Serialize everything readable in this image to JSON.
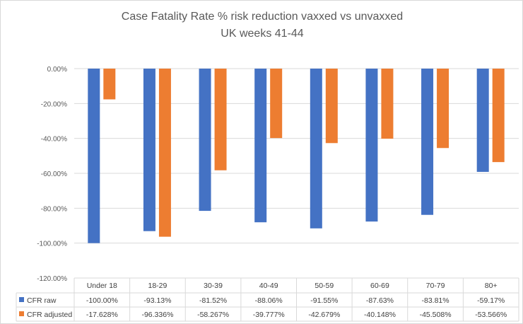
{
  "chart_data": {
    "type": "bar",
    "title": "Case Fatality Rate % risk reduction vaxxed vs unvaxxed",
    "subtitle": "UK weeks 41-44",
    "xlabel": "",
    "ylabel": "",
    "ylim": [
      -120,
      0
    ],
    "yticks": [
      0,
      -20,
      -40,
      -60,
      -80,
      -100,
      -120
    ],
    "ytick_labels": [
      "0.00%",
      "-20.00%",
      "-40.00%",
      "-60.00%",
      "-80.00%",
      "-100.00%",
      "-120.00%"
    ],
    "grid": true,
    "legend": "data-table-bottom",
    "categories": [
      "Under 18",
      "18-29",
      "30-39",
      "40-49",
      "50-59",
      "60-69",
      "70-79",
      "80+"
    ],
    "series": [
      {
        "name": "CFR raw",
        "color": "#4472C4",
        "values": [
          -100.0,
          -93.13,
          -81.52,
          -88.06,
          -91.55,
          -87.63,
          -83.81,
          -59.17
        ],
        "labels": [
          "-100.00%",
          "-93.13%",
          "-81.52%",
          "-88.06%",
          "-91.55%",
          "-87.63%",
          "-83.81%",
          "-59.17%"
        ]
      },
      {
        "name": "CFR adjusted",
        "color": "#ED7D31",
        "values": [
          -17.628,
          -96.336,
          -58.267,
          -39.777,
          -42.679,
          -40.148,
          -45.508,
          -53.566
        ],
        "labels": [
          "-17.628%",
          "-96.336%",
          "-58.267%",
          "-39.777%",
          "-42.679%",
          "-40.148%",
          "-45.508%",
          "-53.566%"
        ]
      }
    ]
  }
}
